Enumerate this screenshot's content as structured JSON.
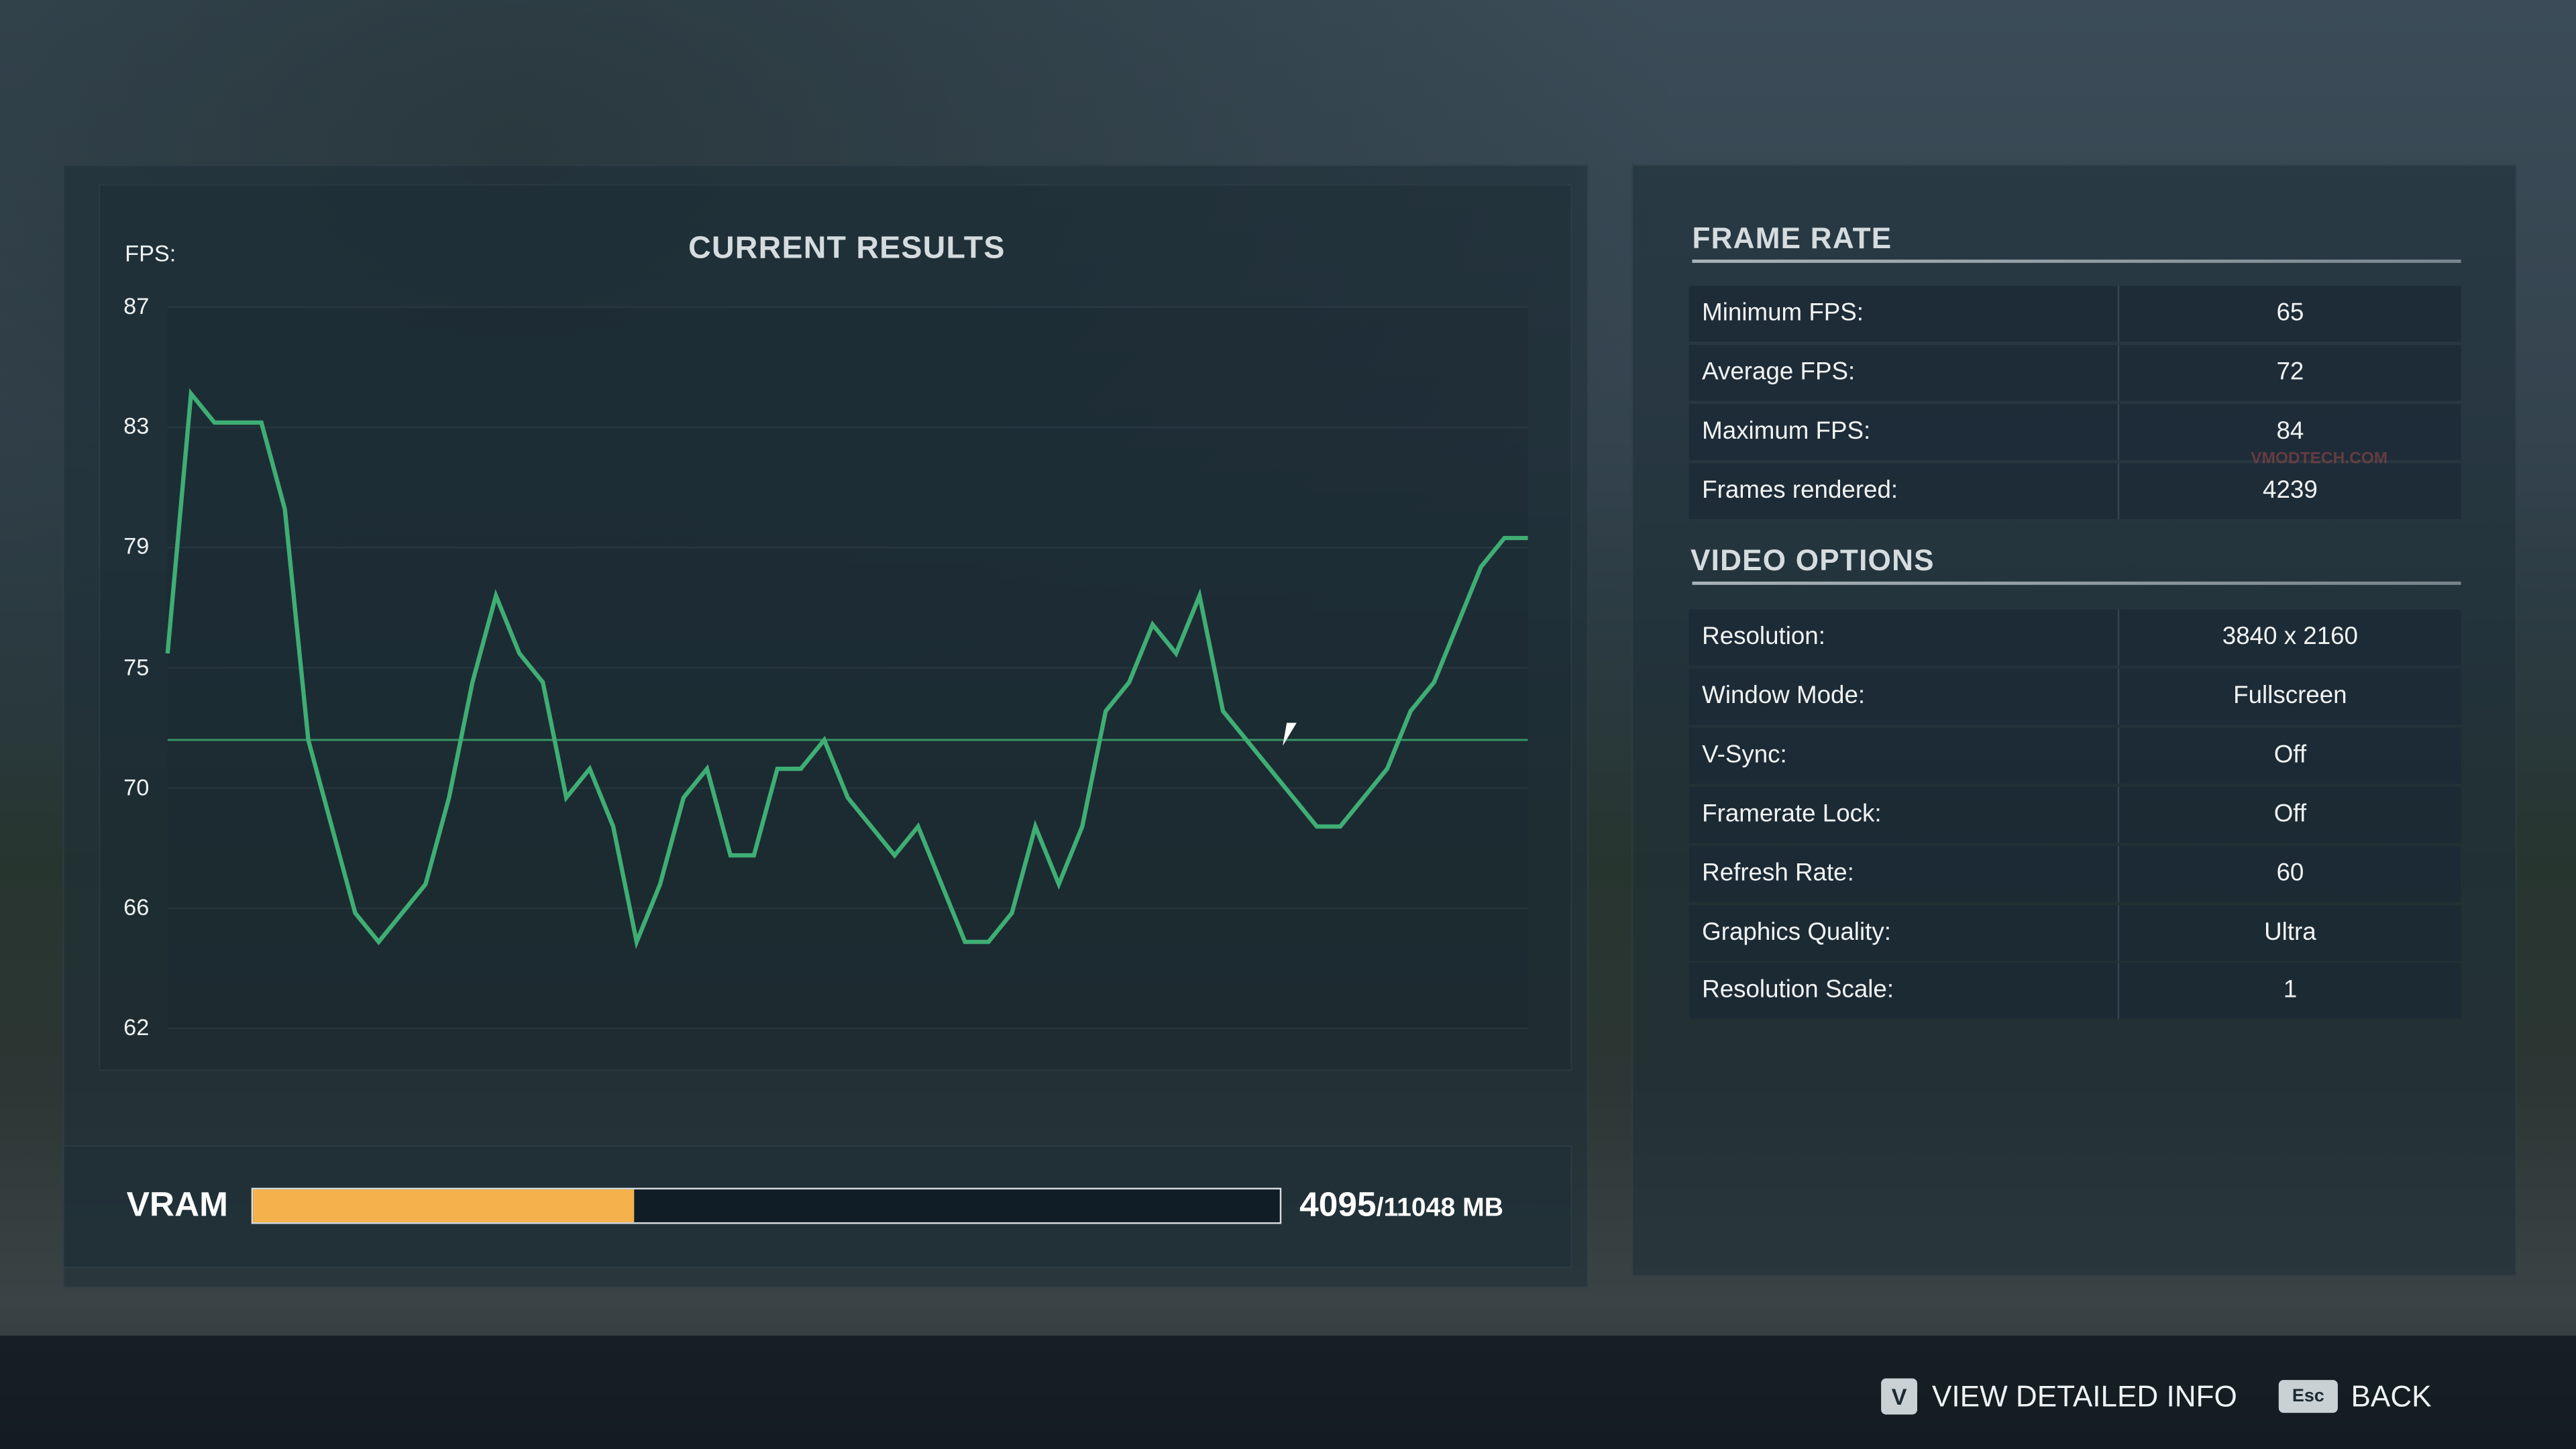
{
  "results": {
    "title": "CURRENT RESULTS",
    "fps_label": "FPS:"
  },
  "chart_data": {
    "type": "line",
    "title": "CURRENT RESULTS",
    "ylabel": "FPS:",
    "ylim": [
      62,
      87
    ],
    "yticks": [
      "87",
      "83",
      "79",
      "75",
      "70",
      "66",
      "62"
    ],
    "grid": true,
    "average_line": 72,
    "line_color": "#3fae74",
    "values": [
      75,
      84,
      83,
      83,
      83,
      80,
      72,
      69,
      66,
      65,
      66,
      67,
      70,
      74,
      77,
      75,
      74,
      70,
      71,
      69,
      65,
      67,
      70,
      71,
      68,
      68,
      71,
      71,
      72,
      70,
      69,
      68,
      69,
      67,
      65,
      65,
      66,
      69,
      67,
      69,
      73,
      74,
      76,
      75,
      77,
      73,
      72,
      71,
      70,
      69,
      69,
      70,
      71,
      73,
      74,
      76,
      78,
      79,
      79
    ]
  },
  "vram": {
    "label": "VRAM",
    "used": "4095",
    "total": "/11048 MB",
    "fraction": 0.3707,
    "fill_color": "#f5b14c"
  },
  "frame_rate": {
    "title": "FRAME RATE",
    "rows": [
      {
        "label": "Minimum FPS:",
        "value": "65"
      },
      {
        "label": "Average FPS:",
        "value": "72"
      },
      {
        "label": "Maximum FPS:",
        "value": "84"
      },
      {
        "label": "Frames rendered:",
        "value": "4239"
      }
    ]
  },
  "video_options": {
    "title": "VIDEO OPTIONS",
    "rows": [
      {
        "label": "Resolution:",
        "value": "3840 x 2160"
      },
      {
        "label": "Window Mode:",
        "value": "Fullscreen"
      },
      {
        "label": "V-Sync:",
        "value": "Off"
      },
      {
        "label": "Framerate Lock:",
        "value": "Off"
      },
      {
        "label": "Refresh Rate:",
        "value": "60"
      },
      {
        "label": "Graphics Quality:",
        "value": "Ultra"
      },
      {
        "label": "Resolution Scale:",
        "value": "1"
      }
    ]
  },
  "watermark": "VMODTECH.COM",
  "footer": {
    "detail_key": "V",
    "detail_label": "VIEW DETAILED INFO",
    "back_key": "Esc",
    "back_label": "BACK"
  }
}
